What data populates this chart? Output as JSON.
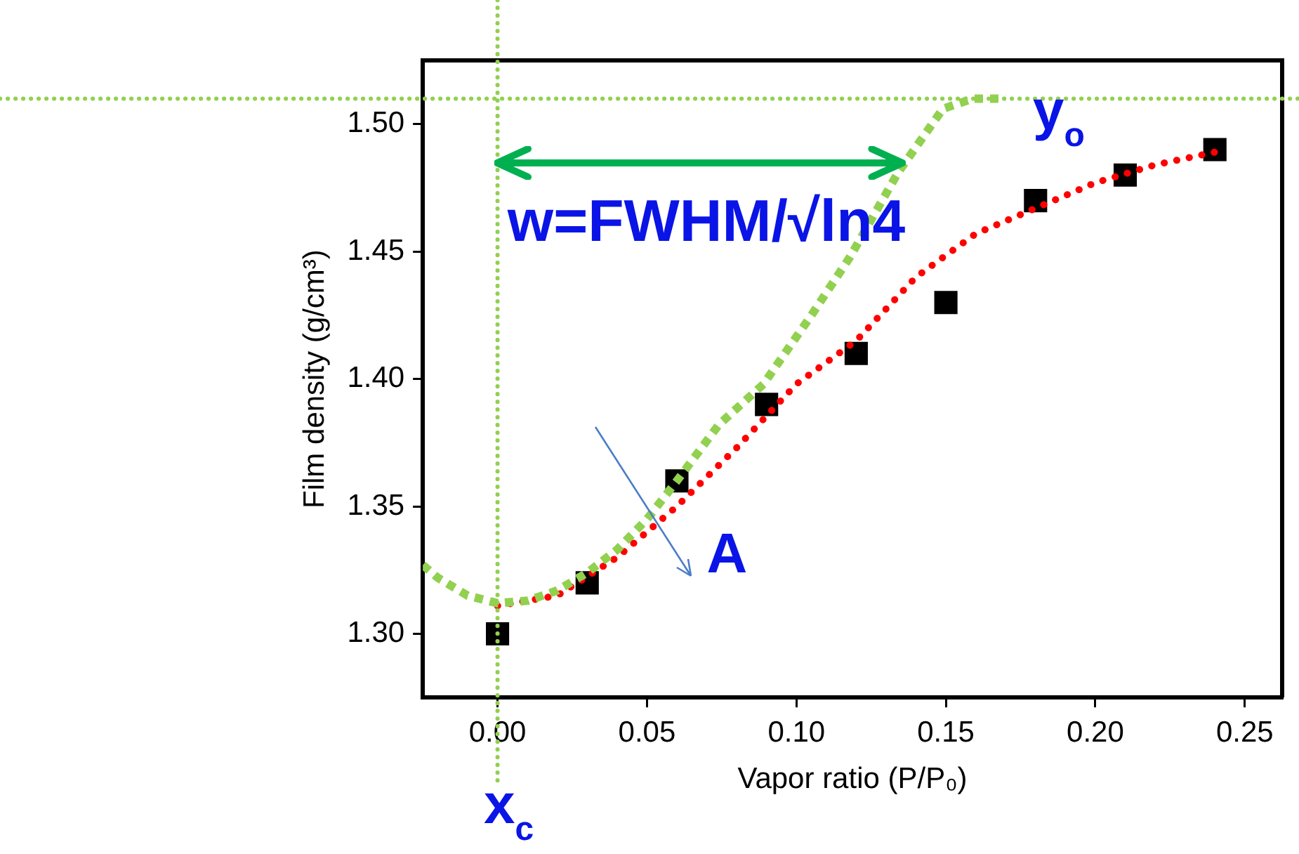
{
  "chart_data": {
    "type": "scatter",
    "xlabel": "Vapor ratio (P/P₀)",
    "ylabel": "Film density (g/cm³)",
    "xlim": [
      -0.025,
      0.2625
    ],
    "ylim": [
      1.275,
      1.525
    ],
    "xticks": [
      {
        "value": 0,
        "label": "0.00"
      },
      {
        "value": 0.05,
        "label": "0.05"
      },
      {
        "value": 0.1,
        "label": "0.10"
      },
      {
        "value": 0.15,
        "label": "0.15"
      },
      {
        "value": 0.2,
        "label": "0.20"
      },
      {
        "value": 0.25,
        "label": "0.25"
      }
    ],
    "yticks": [
      {
        "value": 1.3,
        "label": "1.30"
      },
      {
        "value": 1.35,
        "label": "1.35"
      },
      {
        "value": 1.4,
        "label": "1.40"
      },
      {
        "value": 1.45,
        "label": "1.45"
      },
      {
        "value": 1.5,
        "label": "1.50"
      }
    ],
    "grid": false,
    "legend": false,
    "series": [
      {
        "type": "line",
        "color": "#92d050",
        "line_style": "dotted",
        "marker": "none",
        "x": [
          -0.025,
          -0.02,
          -0.01,
          0,
          0.01,
          0.02,
          0.03,
          0.04,
          0.05,
          0.06,
          0.074,
          0.089,
          0.105,
          0.118,
          0.134,
          0.149,
          0.159,
          0.17
        ],
        "values": [
          1.327,
          1.322,
          1.315,
          1.312,
          1.313,
          1.317,
          1.324,
          1.333,
          1.345,
          1.36,
          1.382,
          1.398,
          1.425,
          1.448,
          1.481,
          1.506,
          1.51,
          1.51
        ]
      },
      {
        "type": "line",
        "color": "#ff0000",
        "line_style": "dotted",
        "marker": "none",
        "x": [
          0,
          0.02,
          0.04,
          0.06,
          0.08,
          0.1,
          0.12,
          0.14,
          0.16,
          0.18,
          0.2,
          0.22,
          0.24
        ],
        "values": [
          1.311,
          1.315,
          1.33,
          1.35,
          1.373,
          1.398,
          1.415,
          1.44,
          1.457,
          1.467,
          1.477,
          1.484,
          1.489
        ]
      },
      {
        "type": "scatter",
        "color": "#000000",
        "marker": "square",
        "x": [
          0,
          0.03,
          0.06,
          0.09,
          0.12,
          0.15,
          0.18,
          0.21,
          0.24
        ],
        "values": [
          1.3,
          1.32,
          1.36,
          1.39,
          1.41,
          1.43,
          1.47,
          1.48,
          1.49
        ]
      }
    ],
    "ref_lines": [
      {
        "axis": "x",
        "value": 0,
        "label": "x$_{c}$",
        "color": "#92d050",
        "line_style": "dotted"
      },
      {
        "axis": "y",
        "value": 1.51,
        "label": "y$_{o}$",
        "color": "#92d050",
        "line_style": "dotted"
      }
    ],
    "annotations": [
      "w=FWHM/√ln4",
      "A"
    ]
  }
}
